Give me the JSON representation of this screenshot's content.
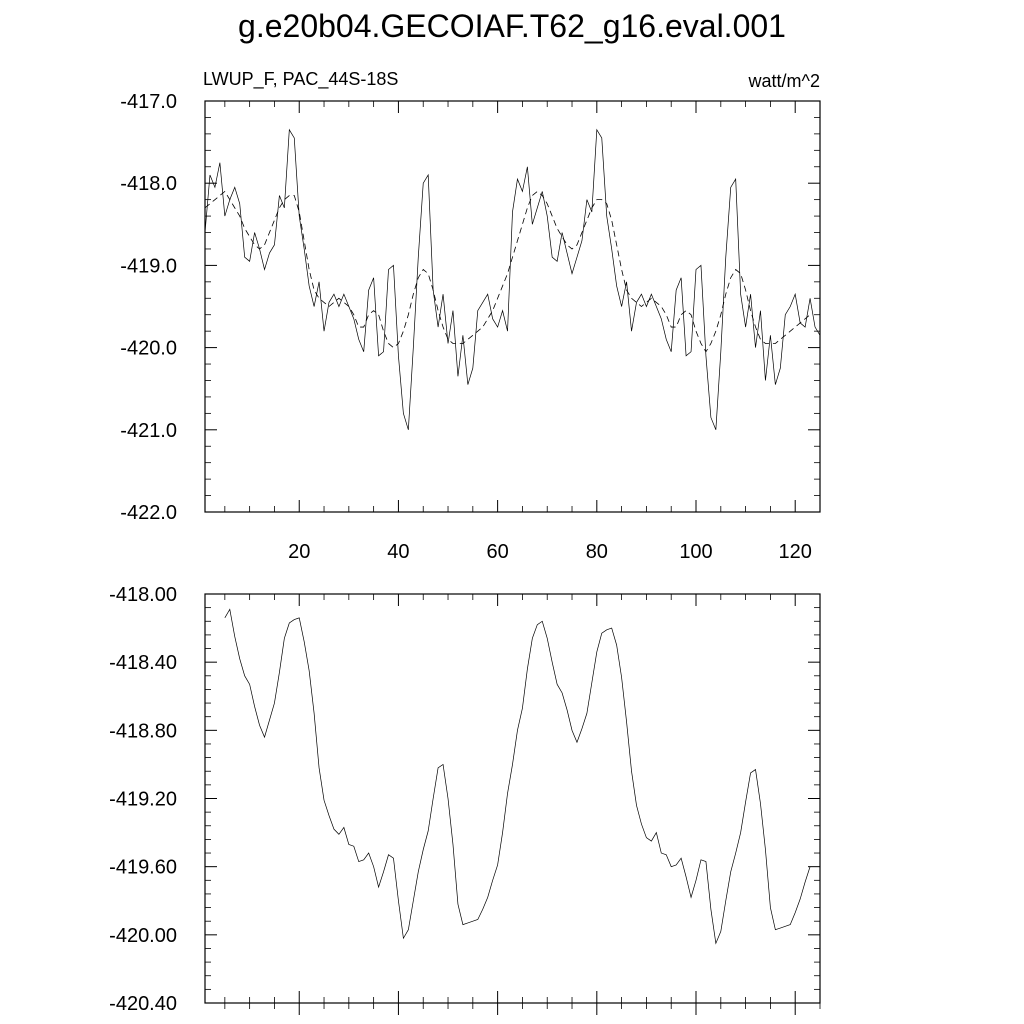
{
  "title": "g.e20b04.GECOIAF.T62_g16.eval.001",
  "chart_data": [
    {
      "type": "line",
      "left_label": "LWUP_F, PAC_44S-18S",
      "right_label": "watt/m^2",
      "xlim": [
        1,
        125
      ],
      "ylim": [
        -422.0,
        -417.0
      ],
      "x_ticks": [
        20,
        40,
        60,
        80,
        100,
        120
      ],
      "y_ticks": [
        -422.0,
        -421.0,
        -420.0,
        -419.0,
        -418.0,
        -417.0
      ],
      "y_tick_labels": [
        "-422.0",
        "-421.0",
        "-420.0",
        "-419.0",
        "-418.0",
        "-417.0"
      ],
      "series": [
        {
          "style": "solid",
          "values": [
            -418.6,
            -417.9,
            -418.05,
            -417.75,
            -418.4,
            -418.2,
            -418.05,
            -418.25,
            -418.9,
            -418.95,
            -418.6,
            -418.8,
            -419.05,
            -418.85,
            -418.75,
            -418.15,
            -418.3,
            -417.35,
            -417.45,
            -418.4,
            -418.8,
            -419.25,
            -419.5,
            -419.2,
            -419.8,
            -419.45,
            -419.35,
            -419.5,
            -419.35,
            -419.5,
            -419.65,
            -419.9,
            -420.05,
            -419.3,
            -419.15,
            -420.1,
            -420.05,
            -419.05,
            -419.0,
            -420.1,
            -420.8,
            -421.0,
            -420.0,
            -418.9,
            -418.0,
            -417.9,
            -419.3,
            -419.75,
            -419.35,
            -419.95,
            -419.55,
            -420.35,
            -419.85,
            -420.45,
            -420.25,
            -419.55,
            -419.45,
            -419.35,
            -419.65,
            -419.75,
            -419.55,
            -419.8,
            -418.35,
            -417.95,
            -418.1,
            -417.8,
            -418.5,
            -418.3,
            -418.1,
            -418.4,
            -418.9,
            -418.95,
            -418.6,
            -418.85,
            -419.1,
            -418.9,
            -418.7,
            -418.2,
            -418.35,
            -417.35,
            -417.45,
            -418.4,
            -418.8,
            -419.25,
            -419.5,
            -419.2,
            -419.8,
            -419.45,
            -419.35,
            -419.5,
            -419.35,
            -419.5,
            -419.65,
            -419.9,
            -420.05,
            -419.3,
            -419.15,
            -420.1,
            -420.05,
            -419.05,
            -419.0,
            -420.1,
            -420.85,
            -421.0,
            -420.05,
            -418.9,
            -418.05,
            -417.95,
            -419.35,
            -419.75,
            -419.35,
            -420.0,
            -419.55,
            -420.4,
            -419.85,
            -420.45,
            -420.25,
            -419.6,
            -419.5,
            -419.35,
            -419.7,
            -419.75,
            -419.4,
            -419.75,
            -419.85
          ]
        },
        {
          "style": "dashed",
          "values": [
            -418.3,
            -418.25,
            -418.2,
            -418.15,
            -418.1,
            -418.2,
            -418.3,
            -418.4,
            -418.55,
            -418.65,
            -418.75,
            -418.8,
            -418.75,
            -418.6,
            -418.45,
            -418.3,
            -418.2,
            -418.15,
            -418.15,
            -418.35,
            -418.7,
            -419.05,
            -419.3,
            -419.4,
            -419.45,
            -419.5,
            -419.45,
            -419.4,
            -419.45,
            -419.5,
            -419.6,
            -419.75,
            -419.75,
            -419.6,
            -419.55,
            -419.6,
            -419.8,
            -419.95,
            -420.0,
            -419.95,
            -419.8,
            -419.6,
            -419.35,
            -419.15,
            -419.05,
            -419.1,
            -419.3,
            -419.55,
            -419.75,
            -419.9,
            -419.95,
            -419.95,
            -419.95,
            -419.9,
            -419.85,
            -419.8,
            -419.75,
            -419.65,
            -419.55,
            -419.4,
            -419.25,
            -419.1,
            -418.9,
            -418.7,
            -418.5,
            -418.3,
            -418.15,
            -418.1,
            -418.15,
            -418.25,
            -418.4,
            -418.55,
            -418.65,
            -418.75,
            -418.8,
            -418.75,
            -418.6,
            -418.45,
            -418.3,
            -418.2,
            -418.2,
            -418.25,
            -418.45,
            -418.75,
            -419.05,
            -419.3,
            -419.4,
            -419.45,
            -419.5,
            -419.45,
            -419.4,
            -419.45,
            -419.5,
            -419.6,
            -419.75,
            -419.75,
            -419.6,
            -419.55,
            -419.6,
            -419.8,
            -419.95,
            -420.05,
            -419.95,
            -419.8,
            -419.6,
            -419.35,
            -419.15,
            -419.05,
            -419.1,
            -419.3,
            -419.55,
            -419.75,
            -419.9,
            -419.95,
            -419.95,
            -419.95,
            -419.9,
            -419.85,
            -419.8,
            -419.75,
            -419.7,
            -419.65,
            -419.6
          ]
        }
      ]
    },
    {
      "type": "line",
      "xlim": [
        1,
        125
      ],
      "ylim": [
        -420.4,
        -418.0
      ],
      "x_ticks": [
        20,
        40,
        60,
        80,
        100,
        120
      ],
      "y_ticks": [
        -420.4,
        -420.0,
        -419.6,
        -419.2,
        -418.8,
        -418.4,
        -418.0
      ],
      "y_tick_labels": [
        "-420.40",
        "-420.00",
        "-419.60",
        "-419.20",
        "-418.80",
        "-418.40",
        "-418.00"
      ],
      "series": [
        {
          "style": "solid",
          "x_start": 5,
          "values": [
            -418.14,
            -418.09,
            -418.25,
            -418.38,
            -418.48,
            -418.53,
            -418.66,
            -418.77,
            -418.84,
            -418.74,
            -418.64,
            -418.46,
            -418.26,
            -418.17,
            -418.15,
            -418.14,
            -418.28,
            -418.45,
            -418.7,
            -419.02,
            -419.21,
            -419.3,
            -419.38,
            -419.41,
            -419.37,
            -419.47,
            -419.48,
            -419.57,
            -419.56,
            -419.52,
            -419.6,
            -419.72,
            -419.63,
            -419.53,
            -419.55,
            -419.8,
            -420.02,
            -419.97,
            -419.8,
            -419.63,
            -419.5,
            -419.39,
            -419.2,
            -419.02,
            -419.0,
            -419.2,
            -419.47,
            -419.82,
            -419.94,
            -419.93,
            -419.92,
            -419.91,
            -419.85,
            -419.78,
            -419.68,
            -419.59,
            -419.4,
            -419.17,
            -419.0,
            -418.8,
            -418.67,
            -418.44,
            -418.26,
            -418.18,
            -418.16,
            -418.26,
            -418.4,
            -418.53,
            -418.58,
            -418.68,
            -418.8,
            -418.87,
            -418.79,
            -418.7,
            -418.52,
            -418.34,
            -418.23,
            -418.21,
            -418.2,
            -418.3,
            -418.49,
            -418.75,
            -419.04,
            -419.24,
            -419.35,
            -419.43,
            -419.45,
            -419.4,
            -419.52,
            -419.53,
            -419.6,
            -419.59,
            -419.55,
            -419.66,
            -419.78,
            -419.68,
            -419.56,
            -419.57,
            -419.85,
            -420.05,
            -419.98,
            -419.8,
            -419.63,
            -419.52,
            -419.4,
            -419.22,
            -419.05,
            -419.03,
            -419.23,
            -419.5,
            -419.84,
            -419.97,
            -419.96,
            -419.95,
            -419.94,
            -419.87,
            -419.79,
            -419.69,
            -419.6
          ]
        }
      ]
    }
  ]
}
